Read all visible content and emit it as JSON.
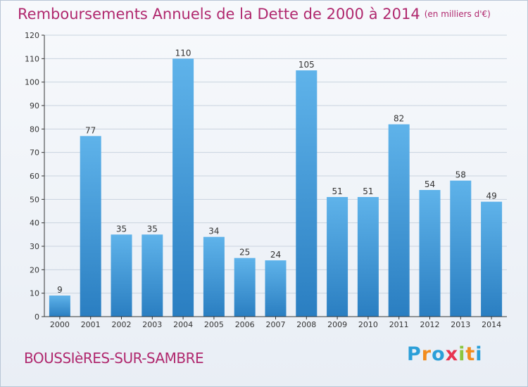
{
  "title": "Remboursements Annuels de la Dette de 2000 à 2014",
  "unit_note": "(en milliers d'€)",
  "commune": "BOUSSIèRES-SUR-SAMBRE",
  "logo": {
    "text": "Proxiti",
    "letters": [
      "P",
      "r",
      "o",
      "x",
      "i",
      "t",
      "i"
    ],
    "colors": [
      "#2b9fd8",
      "#f28c1e",
      "#2b9fd8",
      "#e8334f",
      "#8cc63f",
      "#f28c1e",
      "#2b9fd8"
    ]
  },
  "colors": {
    "title": "#b0286e",
    "bar_top": "#5fb3ea",
    "bar_bottom": "#2a7ec1",
    "grid": "#c9d3df",
    "axis": "#333333"
  },
  "chart_data": {
    "type": "bar",
    "title": "Remboursements Annuels de la Dette de 2000 à 2014",
    "xlabel": "",
    "ylabel": "",
    "categories": [
      "2000",
      "2001",
      "2002",
      "2003",
      "2004",
      "2005",
      "2006",
      "2007",
      "2008",
      "2009",
      "2010",
      "2011",
      "2012",
      "2013",
      "2014"
    ],
    "values": [
      9,
      77,
      35,
      35,
      110,
      34,
      25,
      24,
      105,
      51,
      51,
      82,
      54,
      58,
      49
    ],
    "ylim": [
      0,
      120
    ],
    "yticks": [
      0,
      10,
      20,
      30,
      40,
      50,
      60,
      70,
      80,
      90,
      100,
      110,
      120
    ],
    "grid": true,
    "data_labels": true
  }
}
